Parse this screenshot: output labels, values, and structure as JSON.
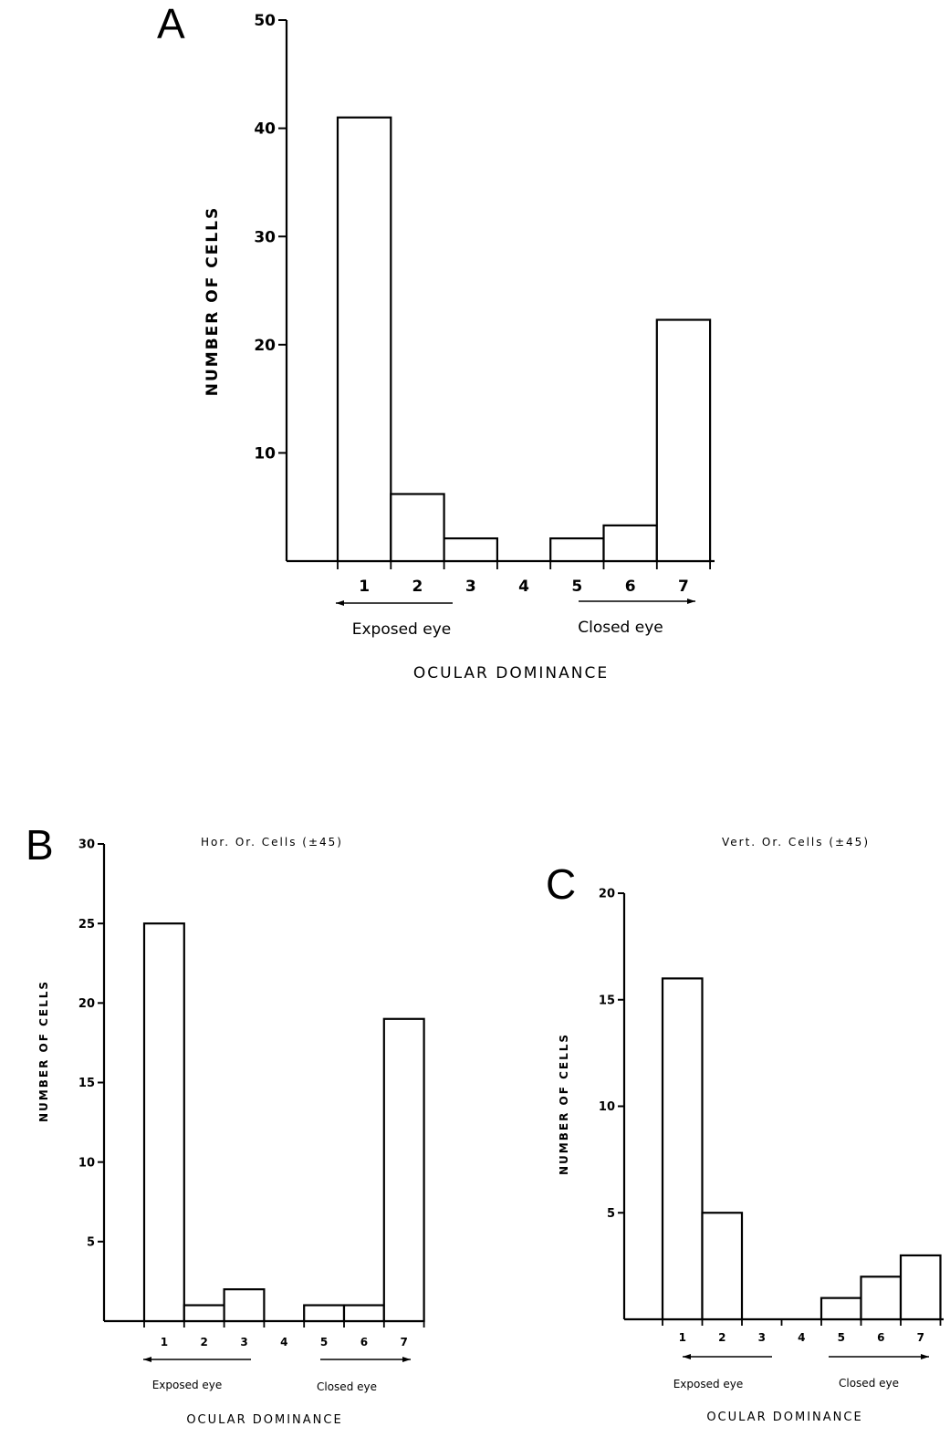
{
  "chart_data": [
    {
      "panel": "A",
      "type": "bar",
      "title": "",
      "xlabel": "OCULAR DOMINANCE",
      "ylabel": "NUMBER OF CELLS",
      "categories": [
        "1",
        "2",
        "3",
        "4",
        "5",
        "6",
        "7"
      ],
      "values": [
        41,
        6.2,
        2.1,
        0,
        2.1,
        3.3,
        22.3
      ],
      "ylim": [
        0,
        50
      ],
      "yticks": [
        "10",
        "20",
        "30",
        "40",
        "50"
      ],
      "left_eye_label": "Exposed eye",
      "right_eye_label": "Closed eye"
    },
    {
      "panel": "B",
      "type": "bar",
      "title": "Hor. Or. Cells (±45)",
      "xlabel": "OCULAR DOMINANCE",
      "ylabel": "NUMBER OF CELLS",
      "categories": [
        "1",
        "2",
        "3",
        "4",
        "5",
        "6",
        "7"
      ],
      "values": [
        25,
        1,
        2,
        0,
        1,
        1,
        19
      ],
      "ylim": [
        0,
        30
      ],
      "yticks": [
        "5",
        "10",
        "15",
        "20",
        "25",
        "30"
      ],
      "left_eye_label": "Exposed eye",
      "right_eye_label": "Closed eye"
    },
    {
      "panel": "C",
      "type": "bar",
      "title": "Vert. Or. Cells (±45)",
      "xlabel": "OCULAR DOMINANCE",
      "ylabel": "NUMBER OF CELLS",
      "categories": [
        "1",
        "2",
        "3",
        "4",
        "5",
        "6",
        "7"
      ],
      "values": [
        16,
        5,
        0,
        0,
        1,
        2,
        3
      ],
      "ylim": [
        0,
        20
      ],
      "yticks": [
        "5",
        "10",
        "15",
        "20"
      ],
      "left_eye_label": "Exposed eye",
      "right_eye_label": "Closed eye"
    }
  ]
}
